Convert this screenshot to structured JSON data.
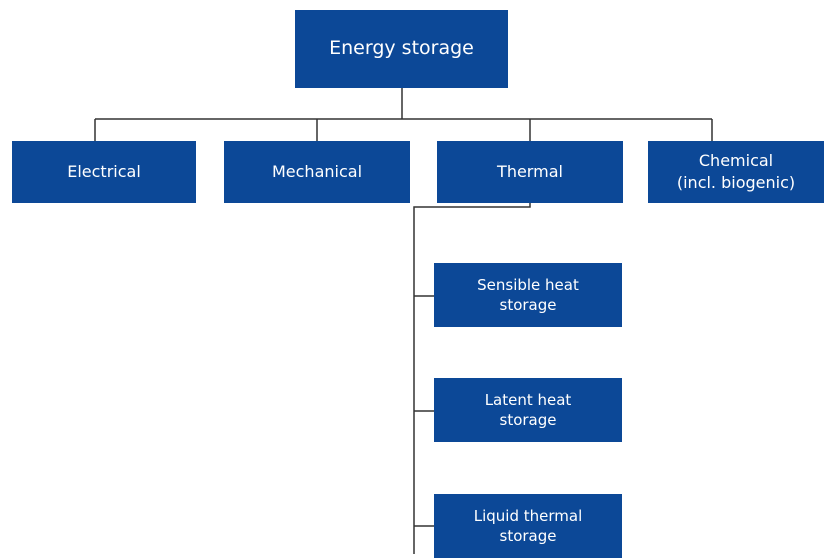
{
  "root": {
    "label": [
      "Energy storage"
    ]
  },
  "categories": [
    {
      "label": [
        "Electrical"
      ]
    },
    {
      "label": [
        "Mechanical"
      ]
    },
    {
      "label": [
        "Thermal"
      ]
    },
    {
      "label": [
        "Chemical",
        "(incl. biogenic)"
      ]
    }
  ],
  "thermal_children": [
    {
      "label": [
        "Sensible heat",
        "storage"
      ]
    },
    {
      "label": [
        "Latent heat",
        "storage"
      ]
    },
    {
      "label": [
        "Liquid thermal",
        "storage"
      ]
    }
  ]
}
